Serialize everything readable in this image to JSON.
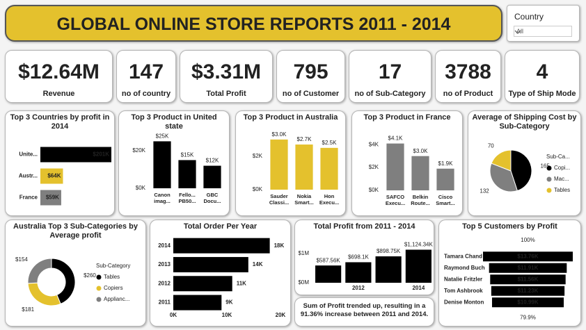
{
  "header": {
    "title": "GLOBAL ONLINE STORE REPORTS 2011 - 2014"
  },
  "slicer": {
    "label": "Country",
    "value": "All"
  },
  "kpis": [
    {
      "value": "$12.64M",
      "label": "Revenue"
    },
    {
      "value": "147",
      "label": "no of country"
    },
    {
      "value": "$3.31M",
      "label": "Total Profit"
    },
    {
      "value": "795",
      "label": "no of Customer"
    },
    {
      "value": "17",
      "label": "no of Sub-Category"
    },
    {
      "value": "3788",
      "label": "no of Product"
    },
    {
      "value": "4",
      "label": "Type of Ship Mode"
    }
  ],
  "chart_data": [
    {
      "type": "bar",
      "horizontal": true,
      "title": "Top 3 Countries by profit in 2014",
      "categories": [
        "Unite...",
        "Austr...",
        "France"
      ],
      "values": [
        201000,
        64000,
        59000
      ],
      "value_labels": [
        "$201K",
        "$64K",
        "$59K"
      ],
      "colors": [
        "#000000",
        "#e4c12d",
        "#7f7f7f"
      ]
    },
    {
      "type": "bar",
      "title": "Top 3 Product in United state",
      "categories": [
        "Canon imag...",
        "Fello... PB50...",
        "GBC Docu..."
      ],
      "values": [
        25000,
        15000,
        12000
      ],
      "value_labels": [
        "$25K",
        "$15K",
        "$12K"
      ],
      "color": "#000000",
      "ylim": [
        0,
        27000
      ],
      "yticks": [
        {
          "value": 0,
          "label": "$0K"
        },
        {
          "value": 20000,
          "label": "$20K"
        }
      ]
    },
    {
      "type": "bar",
      "title": "Top 3 Product in Australia",
      "categories": [
        "Sauder Classi...",
        "Nokia Smart...",
        "Hon Execu..."
      ],
      "values": [
        3000,
        2700,
        2500
      ],
      "value_labels": [
        "$3.0K",
        "$2.7K",
        "$2.5K"
      ],
      "color": "#e4c12d",
      "ylim": [
        0,
        3200
      ],
      "yticks": [
        {
          "value": 0,
          "label": "$0K"
        },
        {
          "value": 2000,
          "label": "$2K"
        }
      ]
    },
    {
      "type": "bar",
      "title": "Top 3 Product in France",
      "categories": [
        "SAFCO Execu...",
        "Belkin Route...",
        "Cisco Smart..."
      ],
      "values": [
        4100,
        3000,
        1900
      ],
      "value_labels": [
        "$4.1K",
        "$3.0K",
        "$1.9K"
      ],
      "color": "#7f7f7f",
      "ylim": [
        0,
        4500
      ],
      "yticks": [
        {
          "value": 0,
          "label": "$0K"
        },
        {
          "value": 2000,
          "label": "$2K"
        },
        {
          "value": 4000,
          "label": "$4K"
        }
      ]
    },
    {
      "type": "pie",
      "title": "Average of Shipping Cost by Sub-Category",
      "legend_title": "Sub-Ca...",
      "categories": [
        "Copi...",
        "Mac...",
        "Tables"
      ],
      "values": [
        165,
        132,
        70
      ],
      "colors": [
        "#000000",
        "#7f7f7f",
        "#e4c12d"
      ]
    },
    {
      "type": "donut",
      "title": "Australia Top 3 Sub-Categories by Average profit",
      "legend_title": "Sub-Category",
      "categories": [
        "Tables",
        "Copiers",
        "Applianc..."
      ],
      "values": [
        260,
        181,
        154
      ],
      "value_labels": [
        "$260",
        "$181",
        "$154"
      ],
      "colors": [
        "#000000",
        "#e4c12d",
        "#7f7f7f"
      ]
    },
    {
      "type": "bar",
      "horizontal": true,
      "title": "Total Order Per Year",
      "categories": [
        "2014",
        "2013",
        "2012",
        "2011"
      ],
      "values": [
        18000,
        14000,
        11000,
        9000
      ],
      "value_labels": [
        "18K",
        "14K",
        "11K",
        "9K"
      ],
      "color": "#000000",
      "xlim": [
        0,
        20000
      ],
      "xticks": [
        {
          "value": 0,
          "label": "0K"
        },
        {
          "value": 10000,
          "label": "10K"
        },
        {
          "value": 20000,
          "label": "20K"
        }
      ]
    },
    {
      "type": "bar",
      "title": "Total Profit from 2011 - 2014",
      "categories": [
        null,
        "2012",
        null,
        "2014"
      ],
      "values": [
        587560,
        698100,
        898750,
        1124340
      ],
      "value_labels": [
        "$587.56K",
        "$698.1K",
        "$898.75K",
        "$1,124.34K"
      ],
      "color": "#000000",
      "ylim": [
        0,
        1300000
      ],
      "yticks": [
        {
          "value": 0,
          "label": "$0M"
        },
        {
          "value": 1000000,
          "label": "$1M"
        }
      ],
      "annotation": "Sum of Profit trended up, resulting in a 91.36% increase between 2011 and 2014."
    },
    {
      "type": "funnel",
      "title": "Top 5 Customers by Profit",
      "categories": [
        "Tamara Chand",
        "Raymond Buch",
        "Natalie Fritzler",
        "Tom Ashbrook",
        "Denise Monton"
      ],
      "values": [
        13760,
        11910,
        11560,
        11230,
        10990
      ],
      "value_labels": [
        "$13.76K",
        "$11.91K",
        "$11.56K",
        "$11.23K",
        "$10.99K"
      ],
      "color": "#000000",
      "annotations": [
        "100%",
        "79.9%"
      ]
    }
  ]
}
